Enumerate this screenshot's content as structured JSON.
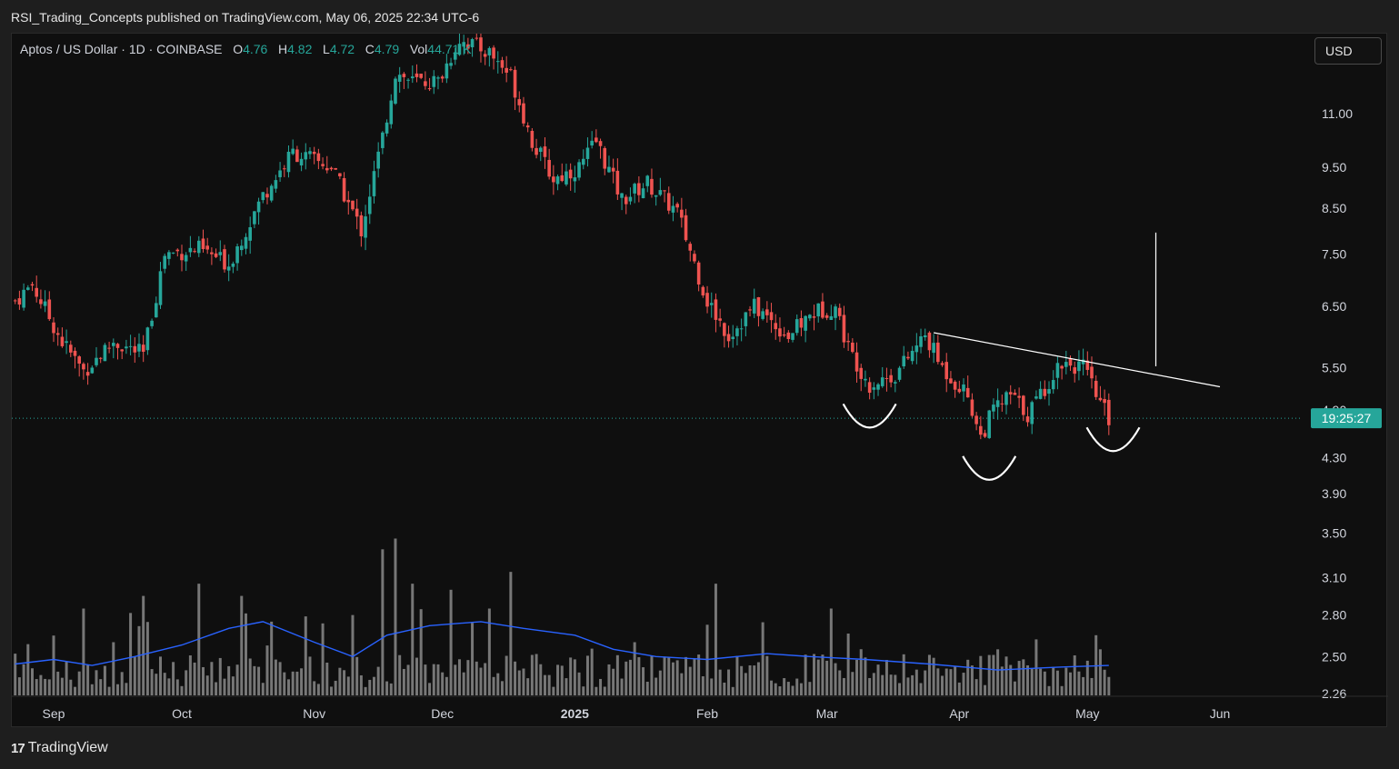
{
  "header": {
    "published": "RSI_Trading_Concepts published on TradingView.com, May 06, 2025 22:34 UTC-6"
  },
  "legend": {
    "symbol": "Aptos / US Dollar · 1D · COINBASE",
    "open_label": "O",
    "open": "4.76",
    "high_label": "H",
    "high": "4.82",
    "low_label": "L",
    "low": "4.72",
    "close_label": "C",
    "close": "4.79",
    "vol_label": "Vol",
    "vol": "44.71 K"
  },
  "currency_button": "USD",
  "footer": {
    "logo_mark": "17",
    "logo_text": "TradingView"
  },
  "chart_data": {
    "type": "candlestick",
    "symbol": "Aptos / US Dollar",
    "interval": "1D",
    "exchange": "COINBASE",
    "y_scale": "log",
    "y_ticks": [
      11.0,
      9.5,
      8.5,
      7.5,
      6.5,
      5.5,
      4.3,
      3.9,
      3.5,
      3.1,
      2.8,
      2.5,
      2.26
    ],
    "partial_tick": "4.90",
    "x_ticks": [
      "Sep",
      "Oct",
      "Nov",
      "Dec",
      "2025",
      "Feb",
      "Mar",
      "Apr",
      "May",
      "Jun"
    ],
    "countdown": "19:25:27",
    "current_price": 4.79,
    "colors": {
      "up": "#26a69a",
      "down": "#ef5350",
      "volume": "#777777",
      "volume_ma": "#2962ff",
      "price_line": "#26a69a",
      "background": "#0f0f0f"
    },
    "price_path": [
      [
        "2024-08-23",
        6.6
      ],
      [
        "2024-08-27",
        6.9
      ],
      [
        "2024-09-03",
        5.9
      ],
      [
        "2024-09-08",
        5.45
      ],
      [
        "2024-09-15",
        5.9
      ],
      [
        "2024-09-22",
        5.7
      ],
      [
        "2024-09-27",
        7.5
      ],
      [
        "2024-10-05",
        7.6
      ],
      [
        "2024-10-12",
        7.3
      ],
      [
        "2024-10-20",
        8.8
      ],
      [
        "2024-10-27",
        9.9
      ],
      [
        "2024-11-05",
        9.5
      ],
      [
        "2024-11-12",
        8.0
      ],
      [
        "2024-11-17",
        10.3
      ],
      [
        "2024-11-20",
        12.3
      ],
      [
        "2024-11-24",
        12.0
      ],
      [
        "2024-11-30",
        12.0
      ],
      [
        "2024-12-05",
        13.5
      ],
      [
        "2024-12-12",
        13.0
      ],
      [
        "2024-12-17",
        12.2
      ],
      [
        "2024-12-22",
        10.2
      ],
      [
        "2024-12-27",
        9.2
      ],
      [
        "2025-01-02",
        9.5
      ],
      [
        "2025-01-06",
        10.2
      ],
      [
        "2025-01-12",
        8.7
      ],
      [
        "2025-01-18",
        9.1
      ],
      [
        "2025-01-25",
        8.4
      ],
      [
        "2025-02-01",
        6.6
      ],
      [
        "2025-02-06",
        6.0
      ],
      [
        "2025-02-12",
        6.5
      ],
      [
        "2025-02-20",
        6.0
      ],
      [
        "2025-02-26",
        6.4
      ],
      [
        "2025-03-03",
        6.5
      ],
      [
        "2025-03-06",
        5.8
      ],
      [
        "2025-03-11",
        5.25
      ],
      [
        "2025-03-17",
        5.4
      ],
      [
        "2025-03-24",
        6.0
      ],
      [
        "2025-03-28",
        5.5
      ],
      [
        "2025-04-03",
        5.1
      ],
      [
        "2025-04-06",
        4.55
      ],
      [
        "2025-04-09",
        4.9
      ],
      [
        "2025-04-13",
        5.1
      ],
      [
        "2025-04-17",
        4.85
      ],
      [
        "2025-04-22",
        5.3
      ],
      [
        "2025-04-25",
        5.6
      ],
      [
        "2025-04-30",
        5.5
      ],
      [
        "2025-05-03",
        5.1
      ],
      [
        "2025-05-06",
        4.79
      ]
    ],
    "volume_ma_path": [
      [
        "2024-08-23",
        2.45
      ],
      [
        "2024-09-01",
        2.48
      ],
      [
        "2024-09-10",
        2.44
      ],
      [
        "2024-09-20",
        2.5
      ],
      [
        "2024-10-01",
        2.58
      ],
      [
        "2024-10-12",
        2.7
      ],
      [
        "2024-10-20",
        2.75
      ],
      [
        "2024-11-01",
        2.6
      ],
      [
        "2024-11-10",
        2.5
      ],
      [
        "2024-11-18",
        2.65
      ],
      [
        "2024-11-28",
        2.72
      ],
      [
        "2024-12-10",
        2.75
      ],
      [
        "2024-12-20",
        2.7
      ],
      [
        "2025-01-01",
        2.65
      ],
      [
        "2025-01-10",
        2.55
      ],
      [
        "2025-01-20",
        2.5
      ],
      [
        "2025-02-01",
        2.48
      ],
      [
        "2025-02-15",
        2.52
      ],
      [
        "2025-02-25",
        2.5
      ],
      [
        "2025-03-10",
        2.48
      ],
      [
        "2025-03-25",
        2.45
      ],
      [
        "2025-04-10",
        2.41
      ],
      [
        "2025-04-25",
        2.43
      ],
      [
        "2025-05-06",
        2.44
      ]
    ],
    "volume_spikes": [
      [
        "2024-08-23",
        2.52
      ],
      [
        "2024-09-08",
        2.85
      ],
      [
        "2024-09-15",
        2.6
      ],
      [
        "2024-09-22",
        2.95
      ],
      [
        "2024-10-05",
        3.05
      ],
      [
        "2024-10-15",
        2.95
      ],
      [
        "2024-10-22",
        2.75
      ],
      [
        "2024-11-10",
        2.8
      ],
      [
        "2024-11-17",
        3.35
      ],
      [
        "2024-11-20",
        3.45
      ],
      [
        "2024-11-24",
        3.05
      ],
      [
        "2024-12-03",
        3.0
      ],
      [
        "2024-12-12",
        2.85
      ],
      [
        "2024-12-17",
        3.15
      ],
      [
        "2025-01-15",
        2.6
      ],
      [
        "2025-02-03",
        3.05
      ],
      [
        "2025-03-02",
        2.85
      ],
      [
        "2025-04-10",
        2.55
      ],
      [
        "2025-05-03",
        2.65
      ]
    ],
    "annotations": {
      "neckline": [
        [
          "2025-03-26",
          6.05
        ],
        [
          "2025-06-01",
          5.22
        ]
      ],
      "target_line": {
        "date": "2025-05-17",
        "from": 5.52,
        "to": 7.95
      },
      "arcs": [
        {
          "date": "2025-03-11",
          "price": 4.67
        },
        {
          "date": "2025-04-08",
          "price": 4.05
        },
        {
          "date": "2025-05-07",
          "price": 4.38
        }
      ]
    }
  }
}
